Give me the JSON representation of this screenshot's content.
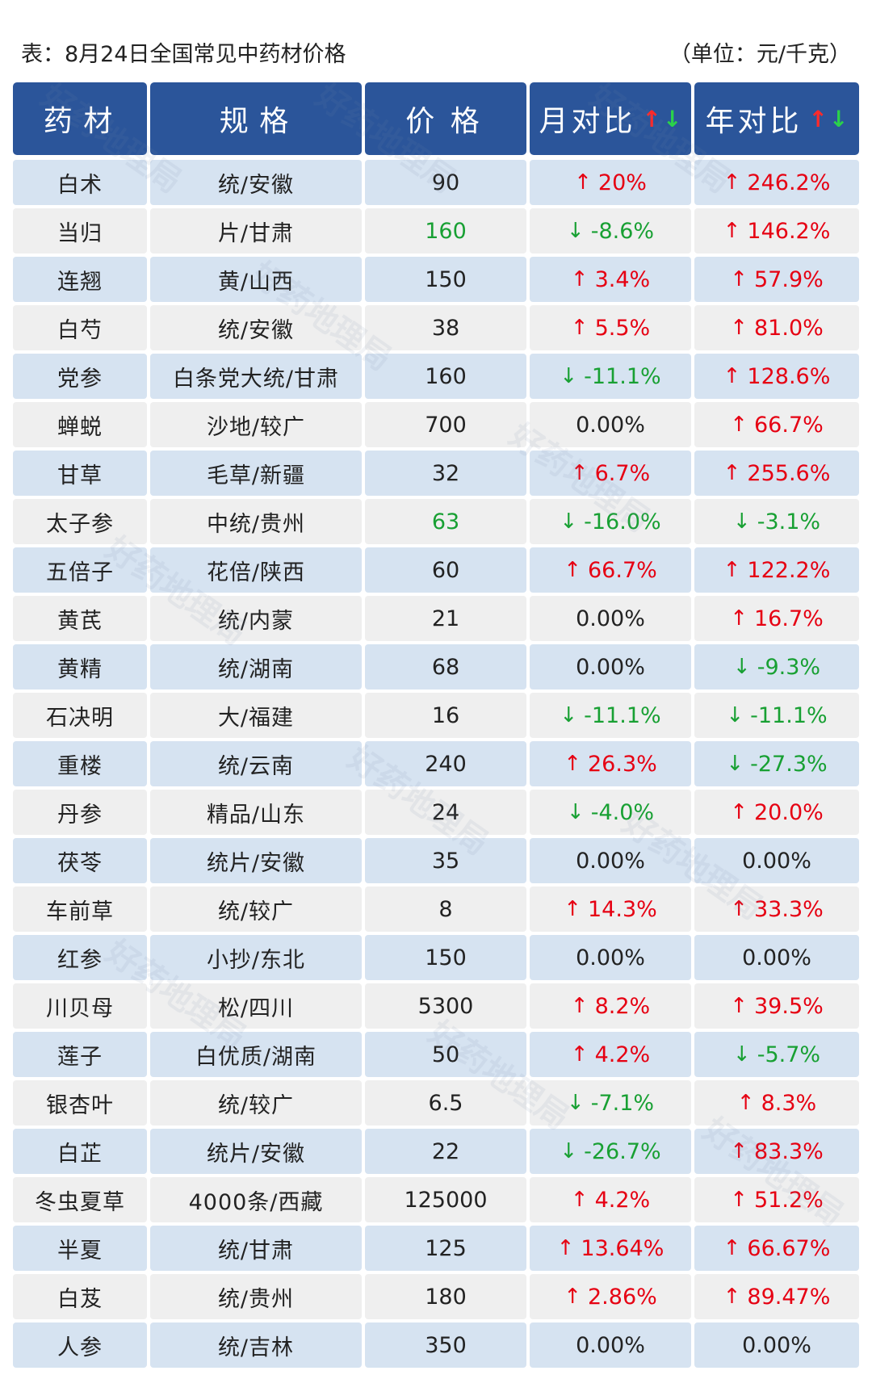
{
  "caption": {
    "title": "表：8月24日全国常见中药材价格",
    "unit": "（单位：元/千克）"
  },
  "headers": [
    "药 材",
    "规 格",
    "价 格",
    "月对比",
    "年对比"
  ],
  "header_arrows": {
    "up": "↑",
    "down": "↓"
  },
  "watermark": "好药地理局",
  "colors": {
    "header_bg": "#2b559a",
    "row_blue": "#d6e3f1",
    "row_gray": "#efefef",
    "up": "#e60012",
    "down": "#18a033"
  },
  "rows": [
    {
      "name": "白术",
      "spec": "统/安徽",
      "price": "90",
      "price_color": "normal",
      "mom": "20%",
      "mom_dir": "up",
      "yoy": "246.2%",
      "yoy_dir": "up"
    },
    {
      "name": "当归",
      "spec": "片/甘肃",
      "price": "160",
      "price_color": "green",
      "mom": "-8.6%",
      "mom_dir": "down",
      "yoy": "146.2%",
      "yoy_dir": "up"
    },
    {
      "name": "连翘",
      "spec": "黄/山西",
      "price": "150",
      "price_color": "normal",
      "mom": "3.4%",
      "mom_dir": "up",
      "yoy": "57.9%",
      "yoy_dir": "up"
    },
    {
      "name": "白芍",
      "spec": "统/安徽",
      "price": "38",
      "price_color": "normal",
      "mom": "5.5%",
      "mom_dir": "up",
      "yoy": "81.0%",
      "yoy_dir": "up"
    },
    {
      "name": "党参",
      "spec": "白条党大统/甘肃",
      "price": "160",
      "price_color": "normal",
      "mom": "-11.1%",
      "mom_dir": "down",
      "yoy": "128.6%",
      "yoy_dir": "up"
    },
    {
      "name": "蝉蜕",
      "spec": "沙地/较广",
      "price": "700",
      "price_color": "normal",
      "mom": "0.00%",
      "mom_dir": "flat",
      "yoy": "66.7%",
      "yoy_dir": "up"
    },
    {
      "name": "甘草",
      "spec": "毛草/新疆",
      "price": "32",
      "price_color": "normal",
      "mom": "6.7%",
      "mom_dir": "up",
      "yoy": "255.6%",
      "yoy_dir": "up"
    },
    {
      "name": "太子参",
      "spec": "中统/贵州",
      "price": "63",
      "price_color": "green",
      "mom": "-16.0%",
      "mom_dir": "down",
      "yoy": "-3.1%",
      "yoy_dir": "down"
    },
    {
      "name": "五倍子",
      "spec": "花倍/陕西",
      "price": "60",
      "price_color": "normal",
      "mom": "66.7%",
      "mom_dir": "up",
      "yoy": "122.2%",
      "yoy_dir": "up"
    },
    {
      "name": "黄芪",
      "spec": "统/内蒙",
      "price": "21",
      "price_color": "normal",
      "mom": "0.00%",
      "mom_dir": "flat",
      "yoy": "16.7%",
      "yoy_dir": "up"
    },
    {
      "name": "黄精",
      "spec": "统/湖南",
      "price": "68",
      "price_color": "normal",
      "mom": "0.00%",
      "mom_dir": "flat",
      "yoy": "-9.3%",
      "yoy_dir": "down"
    },
    {
      "name": "石决明",
      "spec": "大/福建",
      "price": "16",
      "price_color": "normal",
      "mom": "-11.1%",
      "mom_dir": "down",
      "yoy": "-11.1%",
      "yoy_dir": "down"
    },
    {
      "name": "重楼",
      "spec": "统/云南",
      "price": "240",
      "price_color": "normal",
      "mom": "26.3%",
      "mom_dir": "up",
      "yoy": "-27.3%",
      "yoy_dir": "down"
    },
    {
      "name": "丹参",
      "spec": "精品/山东",
      "price": "24",
      "price_color": "normal",
      "mom": "-4.0%",
      "mom_dir": "down",
      "yoy": "20.0%",
      "yoy_dir": "up"
    },
    {
      "name": "茯苓",
      "spec": "统片/安徽",
      "price": "35",
      "price_color": "normal",
      "mom": "0.00%",
      "mom_dir": "flat",
      "yoy": "0.00%",
      "yoy_dir": "flat"
    },
    {
      "name": "车前草",
      "spec": "统/较广",
      "price": "8",
      "price_color": "normal",
      "mom": "14.3%",
      "mom_dir": "up",
      "yoy": "33.3%",
      "yoy_dir": "up"
    },
    {
      "name": "红参",
      "spec": "小抄/东北",
      "price": "150",
      "price_color": "normal",
      "mom": "0.00%",
      "mom_dir": "flat",
      "yoy": "0.00%",
      "yoy_dir": "flat"
    },
    {
      "name": "川贝母",
      "spec": "松/四川",
      "price": "5300",
      "price_color": "normal",
      "mom": "8.2%",
      "mom_dir": "up",
      "yoy": "39.5%",
      "yoy_dir": "up"
    },
    {
      "name": "莲子",
      "spec": "白优质/湖南",
      "price": "50",
      "price_color": "normal",
      "mom": "4.2%",
      "mom_dir": "up",
      "yoy": "-5.7%",
      "yoy_dir": "down"
    },
    {
      "name": "银杏叶",
      "spec": "统/较广",
      "price": "6.5",
      "price_color": "normal",
      "mom": "-7.1%",
      "mom_dir": "down",
      "yoy": "8.3%",
      "yoy_dir": "up"
    },
    {
      "name": "白芷",
      "spec": "统片/安徽",
      "price": "22",
      "price_color": "normal",
      "mom": "-26.7%",
      "mom_dir": "down",
      "yoy": "83.3%",
      "yoy_dir": "up"
    },
    {
      "name": "冬虫夏草",
      "spec": "4000条/西藏",
      "price": "125000",
      "price_color": "normal",
      "mom": "4.2%",
      "mom_dir": "up",
      "yoy": "51.2%",
      "yoy_dir": "up"
    },
    {
      "name": "半夏",
      "spec": "统/甘肃",
      "price": "125",
      "price_color": "normal",
      "mom": "13.64%",
      "mom_dir": "up",
      "yoy": "66.67%",
      "yoy_dir": "up"
    },
    {
      "name": "白芨",
      "spec": "统/贵州",
      "price": "180",
      "price_color": "normal",
      "mom": "2.86%",
      "mom_dir": "up",
      "yoy": "89.47%",
      "yoy_dir": "up"
    },
    {
      "name": "人参",
      "spec": "统/吉林",
      "price": "350",
      "price_color": "normal",
      "mom": "0.00%",
      "mom_dir": "flat",
      "yoy": "0.00%",
      "yoy_dir": "flat"
    }
  ]
}
